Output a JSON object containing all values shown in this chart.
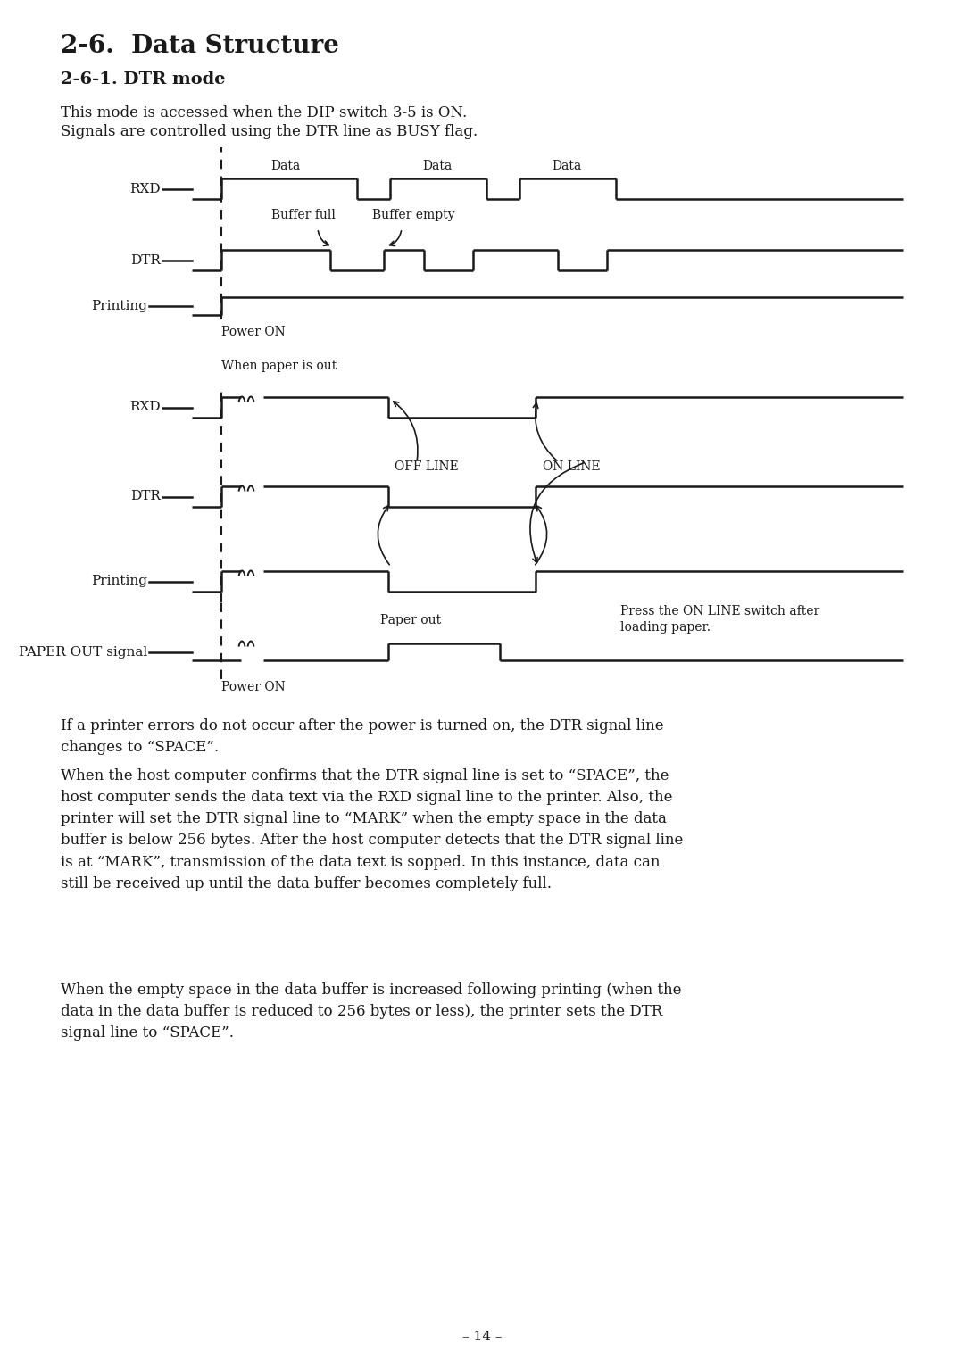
{
  "title": "2-6.  Data Structure",
  "subtitle": "2-6-1. DTR mode",
  "intro_text1": "This mode is accessed when the DIP switch 3-5 is ON.",
  "intro_text2": "Signals are controlled using the DTR line as BUSY flag.",
  "bg_color": "#ffffff",
  "text_color": "#1a1a1a",
  "line_color": "#1a1a1a",
  "body_text1": "If a printer errors do not occur after the power is turned on, the DTR signal line\nchanges to “SPACE”.",
  "body_text2": "When the host computer confirms that the DTR signal line is set to “SPACE”, the\nhost computer sends the data text via the RXD signal line to the printer. Also, the\nprinter will set the DTR signal line to “MARK” when the empty space in the data\nbuffer is below 256 bytes. After the host computer detects that the DTR signal line\nis at “MARK”, transmission of the data text is sopped. In this instance, data can\nstill be received up until the data buffer becomes completely full.",
  "body_text3": "When the empty space in the data buffer is increased following printing (when the\ndata in the data buffer is reduced to 256 bytes or less), the printer sets the DTR\nsignal line to “SPACE”.",
  "footer": "– 14 –"
}
